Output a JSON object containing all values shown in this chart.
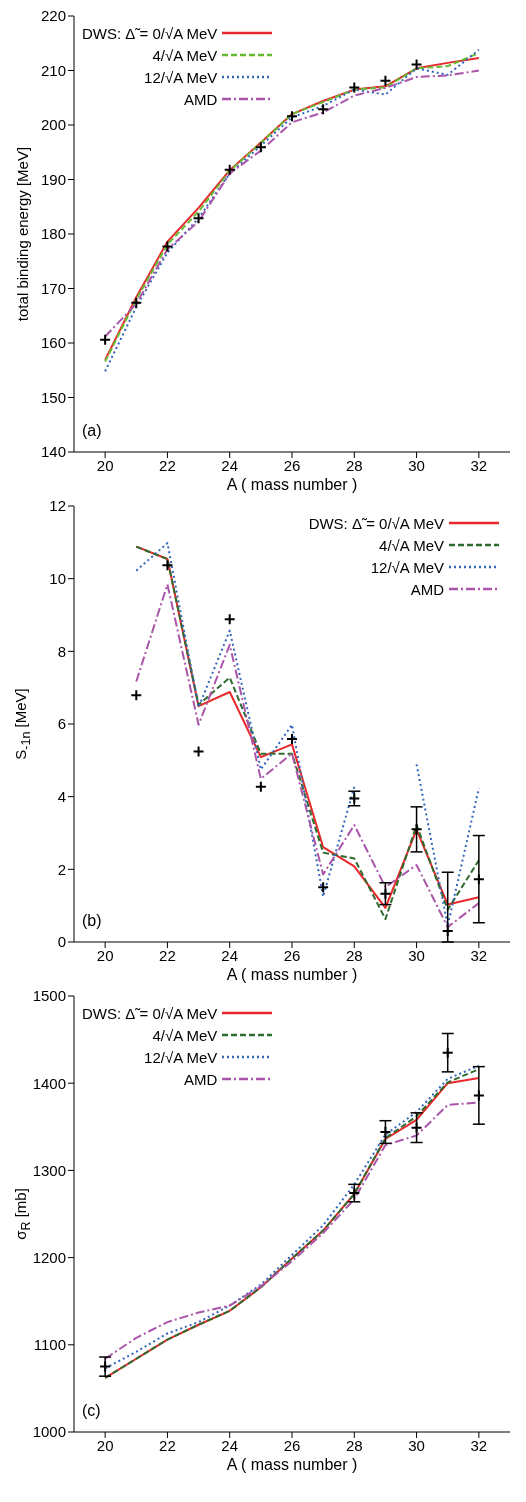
{
  "chart_data": [
    {
      "type": "line",
      "xlabel": "A ( mass number )",
      "ylabel": "total binding energy [MeV]",
      "xlim": [
        19,
        33
      ],
      "xticks": [
        20,
        22,
        24,
        26,
        28,
        30,
        32
      ],
      "ylim": [
        140,
        220
      ],
      "yticks": [
        140,
        150,
        160,
        170,
        180,
        190,
        200,
        210,
        220
      ],
      "legend": "top left",
      "annotations": [
        "(a)"
      ],
      "x": [
        20,
        21,
        22,
        23,
        24,
        25,
        26,
        27,
        28,
        29,
        30,
        31,
        32
      ],
      "series": [
        {
          "name": "DWS: Δ̃ = 0/√A MeV",
          "color": "#e8282b",
          "line_style": "solid",
          "values": [
            156.9,
            168.4,
            178.6,
            184.8,
            191.7,
            196.8,
            202.0,
            204.4,
            206.5,
            207.1,
            210.4,
            211.4,
            212.3
          ]
        },
        {
          "name": "4/√A MeV",
          "color": "#66bb33",
          "line_style": "dashed",
          "values": [
            156.6,
            168.0,
            178.1,
            184.1,
            191.6,
            196.7,
            202.0,
            204.2,
            206.5,
            206.9,
            210.4,
            210.8,
            213.2
          ]
        },
        {
          "name": "12/√A MeV",
          "color": "#3366bb",
          "line_style": "dotted",
          "values": [
            154.8,
            166.6,
            176.6,
            182.9,
            191.1,
            196.2,
            201.4,
            203.5,
            206.5,
            205.6,
            210.4,
            209.2,
            213.8
          ]
        },
        {
          "name": "AMD",
          "color": "#aa55aa",
          "line_style": "dashdot",
          "values": [
            161.2,
            167.2,
            177.2,
            182.3,
            191.1,
            195.3,
            200.5,
            202.3,
            205.4,
            206.8,
            208.8,
            209.1,
            210.0
          ]
        },
        {
          "type": "scatter",
          "color": "#000000",
          "marker": "cross",
          "x": [
            20,
            21,
            22,
            23,
            24,
            25,
            26,
            27,
            28,
            29,
            30
          ],
          "values": [
            160.6,
            167.4,
            177.7,
            182.9,
            191.8,
            195.9,
            201.6,
            202.9,
            206.9,
            208.1,
            211.1
          ]
        }
      ]
    },
    {
      "type": "line",
      "xlabel": "A ( mass number )",
      "ylabel": "S$_{-1n}$ [MeV]",
      "xlim": [
        19,
        33
      ],
      "xticks": [
        20,
        22,
        24,
        26,
        28,
        30,
        32
      ],
      "ylim": [
        0,
        12
      ],
      "yticks": [
        0,
        2,
        4,
        6,
        8,
        10,
        12
      ],
      "legend": "top right",
      "annotations": [
        "(b)"
      ],
      "x": [
        21,
        22,
        23,
        24,
        25,
        26,
        27,
        28,
        29,
        30,
        31,
        32
      ],
      "series": [
        {
          "name": "DWS: Δ̃ = 0/√A MeV",
          "color": "#e8282b",
          "line_style": "solid",
          "values": [
            10.88,
            10.54,
            6.49,
            6.88,
            5.09,
            5.44,
            2.61,
            2.08,
            0.94,
            3.09,
            1.03,
            1.23
          ]
        },
        {
          "name": "4/√A MeV",
          "color": "#2e6b2e",
          "line_style": "dashed",
          "values": [
            10.88,
            10.54,
            6.53,
            7.28,
            5.18,
            5.18,
            2.46,
            2.3,
            0.63,
            3.22,
            0.89,
            2.25
          ]
        },
        {
          "name": "12/√A MeV",
          "color": "#3366bb",
          "line_style": "dotted",
          "values": [
            10.22,
            10.98,
            6.46,
            8.57,
            4.75,
            5.98,
            1.25,
            4.27,
            null,
            4.89,
            0.45,
            4.23
          ]
        },
        {
          "name": "AMD",
          "color": "#aa55aa",
          "line_style": "dashdot",
          "values": [
            7.17,
            9.84,
            5.98,
            8.18,
            4.49,
            5.19,
            1.86,
            3.22,
            1.51,
            2.12,
            0.41,
            1.07
          ]
        },
        {
          "type": "scatter",
          "color": "#000000",
          "marker": "cross",
          "values": [
            6.79,
            10.37,
            5.24,
            8.88,
            4.27,
            5.59,
            1.51,
            3.95,
            1.33,
            3.1,
            0.3,
            1.73
          ],
          "errors": [
            null,
            null,
            null,
            null,
            null,
            null,
            null,
            0.2,
            0.3,
            0.62,
            [
              0,
              1.92
            ],
            1.2
          ]
        }
      ]
    },
    {
      "type": "line",
      "xlabel": "A ( mass number )",
      "ylabel": "σ$_{R}$ [mb]",
      "xlim": [
        19,
        33
      ],
      "xticks": [
        20,
        22,
        24,
        26,
        28,
        30,
        32
      ],
      "ylim": [
        1000,
        1500
      ],
      "yticks": [
        1000,
        1100,
        1200,
        1300,
        1400,
        1500
      ],
      "legend": "top left",
      "annotations": [
        "(c)"
      ],
      "x": [
        20,
        21,
        22,
        23,
        24,
        25,
        26,
        27,
        28,
        29,
        30,
        31,
        32
      ],
      "series": [
        {
          "name": "DWS: Δ̃ = 0/√A MeV",
          "color": "#e8282b",
          "line_style": "solid",
          "values": [
            1062,
            1084,
            1106,
            1123,
            1139,
            1166,
            1199,
            1231,
            1273,
            1336,
            1358,
            1400,
            1406
          ]
        },
        {
          "name": "4/√A MeV",
          "color": "#2e6b2e",
          "line_style": "dashed",
          "values": [
            1062,
            1084,
            1106,
            1123,
            1139,
            1166,
            1199,
            1231,
            1273,
            1337,
            1362,
            1401,
            1416
          ]
        },
        {
          "name": "12/√A MeV",
          "color": "#3366bb",
          "line_style": "dotted",
          "values": [
            1073,
            1092,
            1113,
            1126,
            1145,
            1169,
            1203,
            1237,
            1284,
            1341,
            1367,
            1405,
            1420
          ]
        },
        {
          "name": "AMD",
          "color": "#aa55aa",
          "line_style": "dashdot",
          "values": [
            1084,
            1108,
            1126,
            1137,
            1145,
            1167,
            1196,
            1228,
            1267,
            1329,
            1340,
            1375,
            1378
          ]
        },
        {
          "type": "scatter",
          "color": "#000000",
          "marker": "cross",
          "x": [
            20,
            28,
            29,
            30,
            31,
            32
          ],
          "values": [
            1075,
            1274,
            1344,
            1349,
            1435,
            1386
          ],
          "errors": [
            11,
            10,
            13,
            17,
            22,
            33
          ]
        }
      ]
    }
  ]
}
